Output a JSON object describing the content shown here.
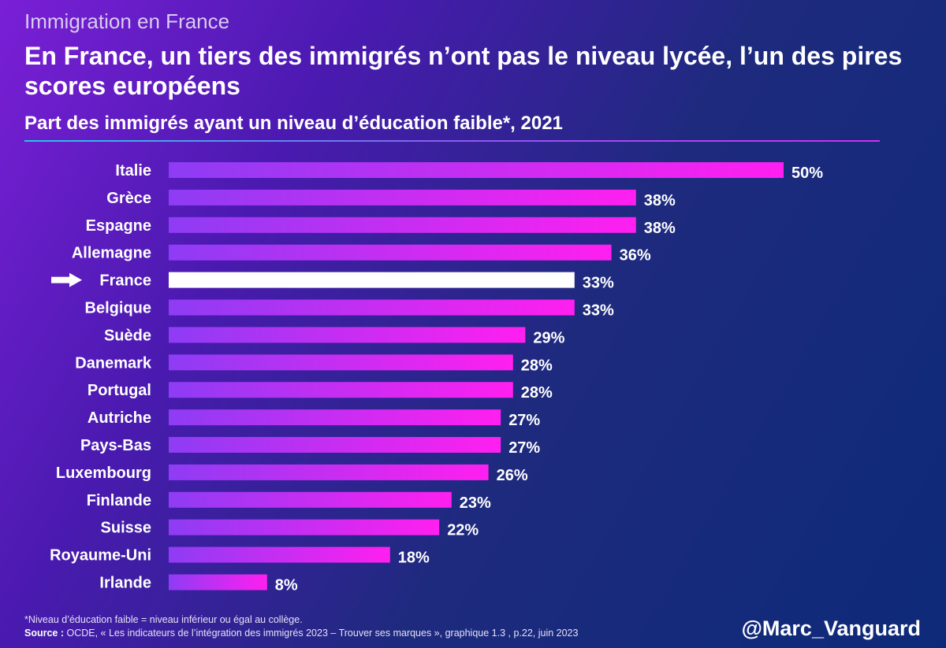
{
  "header": {
    "kicker": "Immigration en France",
    "title": "En France, un tiers des immigrés n’ont pas le niveau lycée, l’un des pires scores européens"
  },
  "chart_data": {
    "type": "bar",
    "orientation": "horizontal",
    "title": "Part des immigrés ayant un niveau d’éducation faible*, 2021",
    "categories": [
      "Italie",
      "Grèce",
      "Espagne",
      "Allemagne",
      "France",
      "Belgique",
      "Suède",
      "Danemark",
      "Portugal",
      "Autriche",
      "Pays-Bas",
      "Luxembourg",
      "Finlande",
      "Suisse",
      "Royaume-Uni",
      "Irlande"
    ],
    "values": [
      50,
      38,
      38,
      36,
      33,
      33,
      29,
      28,
      28,
      27,
      27,
      26,
      23,
      22,
      18,
      8
    ],
    "value_labels": [
      "50%",
      "38%",
      "38%",
      "36%",
      "33%",
      "33%",
      "29%",
      "28%",
      "28%",
      "27%",
      "27%",
      "26%",
      "23%",
      "22%",
      "18%",
      "8%"
    ],
    "highlight": "France",
    "unit": "%",
    "xlim": [
      0,
      50
    ]
  },
  "colors": {
    "bar_start": "#8e3cf4",
    "bar_end": "#ff1ff0",
    "highlight": "#ffffff",
    "arrow": "#ffffff"
  },
  "footer": {
    "footnote": "*Niveau d’éducation faible = niveau inférieur ou égal au collège.",
    "source_label": "Source :",
    "source_text": " OCDE, « Les indicateurs de l’intégration des immigrés 2023 – Trouver ses marques », graphique 1.3 , p.22, juin 2023",
    "handle": "@Marc_Vanguard"
  }
}
